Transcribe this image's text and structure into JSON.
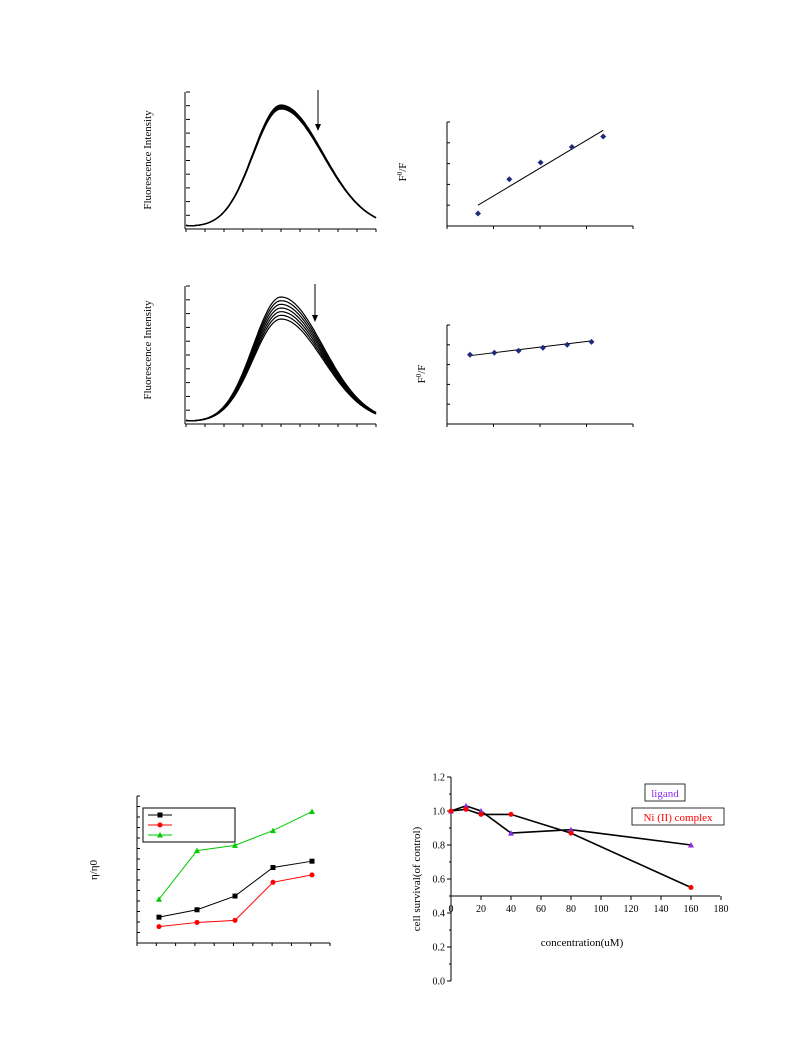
{
  "chart_data": [
    {
      "id": "spectrum-top",
      "type": "line",
      "ylabel": "Fluorescence Intensity",
      "curve_count": 5,
      "peak_position": 0.5,
      "arrow_direction": "down"
    },
    {
      "id": "sv-top",
      "type": "scatter",
      "ylabel_base": "F",
      "ylabel_sup": "0",
      "ylabel_tail": "/F",
      "x": [
        1,
        2,
        3,
        4,
        5
      ],
      "y": [
        0.12,
        0.45,
        0.61,
        0.76,
        0.86
      ],
      "fit": [
        0.2,
        0.92
      ],
      "marker_color": "#1f2a7a"
    },
    {
      "id": "spectrum-bottom",
      "type": "line",
      "ylabel": "Fluorescence Intensity",
      "curve_count": 7,
      "peak_position": 0.5,
      "arrow_direction": "down"
    },
    {
      "id": "sv-bottom",
      "type": "scatter",
      "ylabel_base": "F",
      "ylabel_sup": "0",
      "ylabel_tail": "/F",
      "x": [
        1,
        2,
        3,
        4,
        5,
        6
      ],
      "y": [
        0.7,
        0.72,
        0.74,
        0.77,
        0.8,
        0.83
      ],
      "fit": [
        0.69,
        0.84
      ],
      "marker_color": "#1f2a7a"
    },
    {
      "id": "viscosity",
      "type": "line",
      "ylabel": "η/η0",
      "series": [
        {
          "values": [
            0.15,
            0.22,
            0.35,
            0.62,
            0.68
          ],
          "color": "#000000",
          "marker": "square"
        },
        {
          "values": [
            0.06,
            0.1,
            0.12,
            0.48,
            0.55
          ],
          "color": "#ff0000",
          "marker": "circle"
        },
        {
          "values": [
            0.32,
            0.78,
            0.83,
            0.97,
            1.15
          ],
          "color": "#00cc00",
          "marker": "triangle"
        }
      ],
      "ylim": [
        0,
        1.25
      ]
    },
    {
      "id": "cell-survival",
      "type": "line",
      "title": "",
      "xlabel": "concentration(uM)",
      "ylabel": "cell survival(of control)",
      "xticks": [
        "0",
        "20",
        "40",
        "60",
        "80",
        "100",
        "120",
        "140",
        "160",
        "180"
      ],
      "yticks": [
        "0.0",
        "0.2",
        "0.4",
        "0.6",
        "0.8",
        "1.0",
        "1.2"
      ],
      "xlim": [
        0,
        180
      ],
      "ylim": [
        0,
        1.2
      ],
      "series": [
        {
          "name": "ligand",
          "x": [
            0,
            10,
            20,
            40,
            80,
            160
          ],
          "y": [
            1.0,
            1.03,
            1.0,
            0.87,
            0.89,
            0.8
          ],
          "color": "#8a2be2",
          "marker": "triangle"
        },
        {
          "name": "Ni (II) complex",
          "x": [
            0,
            10,
            20,
            40,
            80,
            160
          ],
          "y": [
            1.0,
            1.01,
            0.98,
            0.98,
            0.87,
            0.55
          ],
          "color": "#ff0000",
          "marker": "circle"
        }
      ]
    }
  ]
}
